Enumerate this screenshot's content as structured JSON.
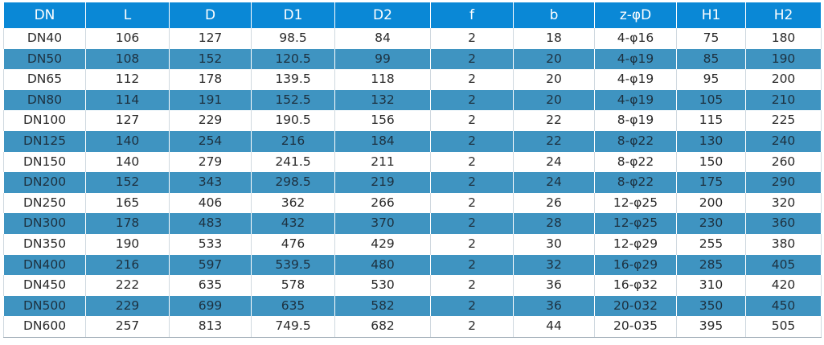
{
  "table": {
    "headers": [
      "DN",
      "L",
      "D",
      "D1",
      "D2",
      "f",
      "b",
      "z-φD",
      "H1",
      "H2"
    ],
    "rows": [
      [
        "DN40",
        "106",
        "127",
        "98.5",
        "84",
        "2",
        "18",
        "4-φ16",
        "75",
        "180"
      ],
      [
        "DN50",
        "108",
        "152",
        "120.5",
        "99",
        "2",
        "20",
        "4-φ19",
        "85",
        "190"
      ],
      [
        "DN65",
        "112",
        "178",
        "139.5",
        "118",
        "2",
        "20",
        "4-φ19",
        "95",
        "200"
      ],
      [
        "DN80",
        "114",
        "191",
        "152.5",
        "132",
        "2",
        "20",
        "4-φ19",
        "105",
        "210"
      ],
      [
        "DN100",
        "127",
        "229",
        "190.5",
        "156",
        "2",
        "22",
        "8-φ19",
        "115",
        "225"
      ],
      [
        "DN125",
        "140",
        "254",
        "216",
        "184",
        "2",
        "22",
        "8-φ22",
        "130",
        "240"
      ],
      [
        "DN150",
        "140",
        "279",
        "241.5",
        "211",
        "2",
        "24",
        "8-φ22",
        "150",
        "260"
      ],
      [
        "DN200",
        "152",
        "343",
        "298.5",
        "219",
        "2",
        "24",
        "8-φ22",
        "175",
        "290"
      ],
      [
        "DN250",
        "165",
        "406",
        "362",
        "266",
        "2",
        "26",
        "12-φ25",
        "200",
        "320"
      ],
      [
        "DN300",
        "178",
        "483",
        "432",
        "370",
        "2",
        "28",
        "12-φ25",
        "230",
        "360"
      ],
      [
        "DN350",
        "190",
        "533",
        "476",
        "429",
        "2",
        "30",
        "12-φ29",
        "255",
        "380"
      ],
      [
        "DN400",
        "216",
        "597",
        "539.5",
        "480",
        "2",
        "32",
        "16-φ29",
        "285",
        "405"
      ],
      [
        "DN450",
        "222",
        "635",
        "578",
        "530",
        "2",
        "36",
        "16-φ32",
        "310",
        "420"
      ],
      [
        "DN500",
        "229",
        "699",
        "635",
        "582",
        "2",
        "36",
        "20-032",
        "350",
        "450"
      ],
      [
        "DN600",
        "257",
        "813",
        "749.5",
        "682",
        "2",
        "44",
        "20-035",
        "395",
        "505"
      ]
    ]
  },
  "colors": {
    "header_bg": "#0a88d6",
    "stripe_bg": "#3f94c1",
    "row_bg": "#ffffff"
  }
}
